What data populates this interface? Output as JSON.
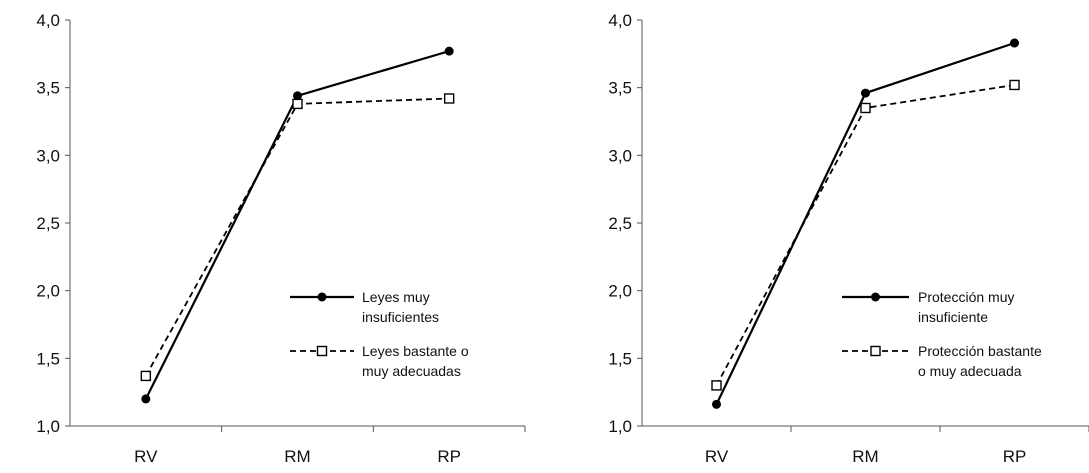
{
  "chart_data": [
    {
      "type": "line",
      "categories": [
        "RV",
        "RM",
        "RP"
      ],
      "ylim": [
        1.0,
        4.0
      ],
      "yticks": [
        "1,0",
        "1,5",
        "2,0",
        "2,5",
        "3,0",
        "3,5",
        "4,0"
      ],
      "grid": false,
      "legend_position": "bottom-right",
      "series": [
        {
          "name": [
            "Leyes muy",
            "insuficientes"
          ],
          "values": [
            1.2,
            3.44,
            3.77
          ],
          "line_style": "solid",
          "marker": "filled-circle",
          "color": "#000000"
        },
        {
          "name": [
            "Leyes bastante o",
            "muy adecuadas"
          ],
          "values": [
            1.37,
            3.38,
            3.42
          ],
          "line_style": "dashed",
          "marker": "open-square",
          "color": "#000000"
        }
      ]
    },
    {
      "type": "line",
      "categories": [
        "RV",
        "RM",
        "RP"
      ],
      "ylim": [
        1.0,
        4.0
      ],
      "yticks": [
        "1,0",
        "1,5",
        "2,0",
        "2,5",
        "3,0",
        "3,5",
        "4,0"
      ],
      "grid": false,
      "legend_position": "bottom-right",
      "series": [
        {
          "name": [
            "Protección muy",
            "insuficiente"
          ],
          "values": [
            1.16,
            3.46,
            3.83
          ],
          "line_style": "solid",
          "marker": "filled-circle",
          "color": "#000000"
        },
        {
          "name": [
            "Protección bastante",
            "o muy adecuada"
          ],
          "values": [
            1.3,
            3.35,
            3.52
          ],
          "line_style": "dashed",
          "marker": "open-square",
          "color": "#000000"
        }
      ]
    }
  ]
}
